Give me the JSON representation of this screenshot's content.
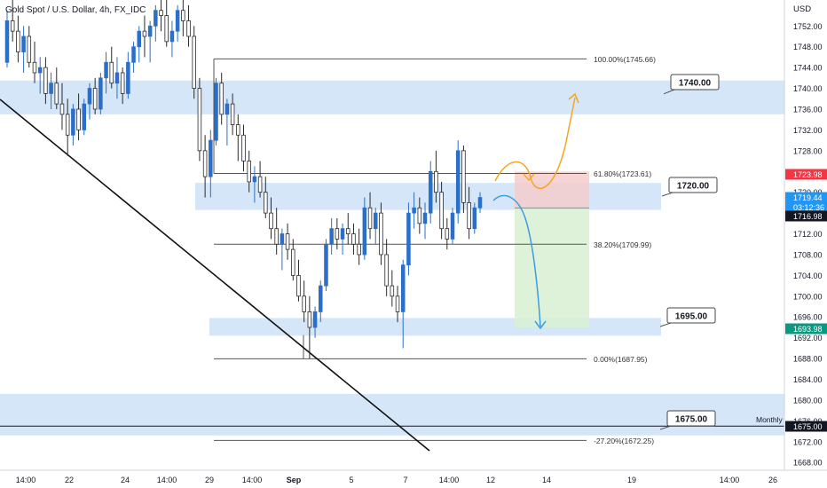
{
  "header": {
    "title": "Gold Spot / U.S. Dollar, 4h, FX_IDC",
    "currency": "USD"
  },
  "colors": {
    "bull": "#2a6fc9",
    "bear": "#2a2a2a",
    "zone": "#cfe3f7",
    "trendline": "#111111",
    "fib": "#555555",
    "sell_risk": "#f4cccc",
    "sell_reward": "#d8f0d4",
    "orange_path": "#f5a623",
    "blue_path": "#3d9be0",
    "tag_red": "#f23645",
    "tag_blue": "#2196f3",
    "tag_black": "#131722",
    "tag_green": "#089981"
  },
  "chart_data": {
    "type": "candlestick",
    "title": "Gold Spot / U.S. Dollar, 4h, FX_IDC",
    "y_axis": {
      "side": "right",
      "unit": "USD",
      "range": [
        1666.5,
        1757.0
      ],
      "ticks": [
        "1752.00",
        "1748.00",
        "1744.00",
        "1740.00",
        "1736.00",
        "1732.00",
        "1728.00",
        "1724.00",
        "1720.00",
        "1716.00",
        "1712.00",
        "1708.00",
        "1704.00",
        "1700.00",
        "1696.00",
        "1692.00",
        "1688.00",
        "1684.00",
        "1680.00",
        "1676.00",
        "1672.00",
        "1668.00"
      ]
    },
    "x_axis": {
      "ticks": [
        "14:00",
        "22",
        "24",
        "14:00",
        "29",
        "14:00",
        "Sep",
        "5",
        "7",
        "14:00",
        "12",
        "14",
        "19",
        "14:00",
        "26"
      ]
    },
    "grid": false,
    "fibonacci": [
      {
        "label": "100.00%(1745.66)",
        "level": 1745.66
      },
      {
        "label": "61.80%(1723.61)",
        "level": 1723.61
      },
      {
        "label": "38.20%(1709.99)",
        "level": 1709.99
      },
      {
        "label": "0.00%(1687.95)",
        "level": 1687.95
      },
      {
        "label": "-27.20%(1672.25)",
        "level": 1672.25
      }
    ],
    "zones": [
      {
        "label": "1740.00",
        "low": 1735.0,
        "high": 1741.5
      },
      {
        "label": "1720.00",
        "low": 1716.6,
        "high": 1721.8
      },
      {
        "label": "1695.00",
        "low": 1692.4,
        "high": 1695.8
      },
      {
        "label": "1675.00",
        "low": 1673.2,
        "high": 1681.2
      }
    ],
    "monthly_line": {
      "label": "Monthly",
      "level": 1675.0
    },
    "price_tags": [
      {
        "value": "1723.98",
        "role": "red"
      },
      {
        "value": "1719.44",
        "role": "blue"
      },
      {
        "value": "03:12:36",
        "role": "blue"
      },
      {
        "value": "1716.98",
        "role": "black"
      },
      {
        "value": "1693.98",
        "role": "green"
      },
      {
        "value": "1675.00",
        "role": "black"
      }
    ],
    "short_position": {
      "entry": 1716.98,
      "stop": 1723.98,
      "target": 1693.98
    },
    "candles": [
      [
        1745,
        1755,
        1744,
        1753
      ],
      [
        1753,
        1757,
        1749,
        1751
      ],
      [
        1751,
        1754,
        1745,
        1747
      ],
      [
        1747,
        1752,
        1743,
        1750
      ],
      [
        1750,
        1752,
        1744,
        1745
      ],
      [
        1745,
        1749,
        1741,
        1743
      ],
      [
        1743,
        1746,
        1739,
        1744
      ],
      [
        1744,
        1746,
        1737,
        1739
      ],
      [
        1739,
        1743,
        1736,
        1741
      ],
      [
        1741,
        1744,
        1736,
        1737
      ],
      [
        1737,
        1741,
        1732,
        1735
      ],
      [
        1735,
        1738,
        1727,
        1731
      ],
      [
        1731,
        1737,
        1729,
        1736
      ],
      [
        1736,
        1739,
        1730,
        1732
      ],
      [
        1732,
        1738,
        1731,
        1737
      ],
      [
        1737,
        1741,
        1734,
        1740
      ],
      [
        1740,
        1742,
        1735,
        1736
      ],
      [
        1736,
        1743,
        1735,
        1742
      ],
      [
        1742,
        1747,
        1739,
        1745
      ],
      [
        1745,
        1748,
        1740,
        1741
      ],
      [
        1741,
        1746,
        1738,
        1743
      ],
      [
        1743,
        1744,
        1737,
        1739
      ],
      [
        1739,
        1747,
        1738,
        1745
      ],
      [
        1745,
        1749,
        1743,
        1748
      ],
      [
        1748,
        1752,
        1745,
        1751
      ],
      [
        1751,
        1754,
        1746,
        1750
      ],
      [
        1750,
        1753,
        1745,
        1752
      ],
      [
        1752,
        1756,
        1749,
        1755
      ],
      [
        1755,
        1757,
        1751,
        1754
      ],
      [
        1754,
        1757,
        1748,
        1749
      ],
      [
        1749,
        1753,
        1746,
        1751
      ],
      [
        1751,
        1756,
        1749,
        1755
      ],
      [
        1755,
        1757,
        1750,
        1753
      ],
      [
        1753,
        1756,
        1748,
        1750
      ],
      [
        1750,
        1752,
        1738,
        1740
      ],
      [
        1740,
        1742,
        1726,
        1728
      ],
      [
        1728,
        1731,
        1719,
        1723
      ],
      [
        1723,
        1732,
        1719,
        1730
      ],
      [
        1730,
        1742,
        1729,
        1741
      ],
      [
        1741,
        1743,
        1733,
        1735
      ],
      [
        1735,
        1738,
        1729,
        1737
      ],
      [
        1737,
        1739,
        1731,
        1733
      ],
      [
        1733,
        1735,
        1726,
        1731
      ],
      [
        1731,
        1733,
        1724,
        1726
      ],
      [
        1726,
        1728,
        1720,
        1722
      ],
      [
        1722,
        1725,
        1718,
        1723
      ],
      [
        1723,
        1726,
        1719,
        1720
      ],
      [
        1720,
        1723,
        1715,
        1716
      ],
      [
        1716,
        1719,
        1711,
        1713
      ],
      [
        1713,
        1717,
        1708,
        1710
      ],
      [
        1710,
        1713,
        1705,
        1712
      ],
      [
        1712,
        1714,
        1707,
        1709
      ],
      [
        1709,
        1711,
        1703,
        1704
      ],
      [
        1704,
        1707,
        1699,
        1700
      ],
      [
        1700,
        1703,
        1695,
        1697
      ],
      [
        1697,
        1700,
        1688,
        1694
      ],
      [
        1694,
        1698,
        1692,
        1697
      ],
      [
        1697,
        1703,
        1695,
        1702
      ],
      [
        1702,
        1711,
        1701,
        1710
      ],
      [
        1710,
        1715,
        1708,
        1713
      ],
      [
        1713,
        1715,
        1709,
        1711
      ],
      [
        1711,
        1714,
        1708,
        1713
      ],
      [
        1713,
        1716,
        1710,
        1712
      ],
      [
        1712,
        1714,
        1708,
        1710
      ],
      [
        1710,
        1713,
        1706,
        1708
      ],
      [
        1708,
        1719,
        1707,
        1717
      ],
      [
        1717,
        1720,
        1711,
        1713
      ],
      [
        1713,
        1717,
        1710,
        1716
      ],
      [
        1716,
        1718,
        1706,
        1708
      ],
      [
        1708,
        1711,
        1700,
        1702
      ],
      [
        1702,
        1705,
        1698,
        1700
      ],
      [
        1700,
        1702,
        1695,
        1697
      ],
      [
        1697,
        1707,
        1690,
        1706
      ],
      [
        1706,
        1718,
        1704,
        1716
      ],
      [
        1716,
        1720,
        1713,
        1717
      ],
      [
        1717,
        1719,
        1712,
        1714
      ],
      [
        1714,
        1718,
        1711,
        1716
      ],
      [
        1716,
        1726,
        1714,
        1724
      ],
      [
        1724,
        1728,
        1718,
        1720
      ],
      [
        1720,
        1722,
        1711,
        1713
      ],
      [
        1713,
        1715,
        1709,
        1711
      ],
      [
        1711,
        1717,
        1710,
        1716
      ],
      [
        1716,
        1730,
        1714,
        1728
      ],
      [
        1728,
        1729,
        1716,
        1718
      ],
      [
        1718,
        1721,
        1711,
        1713
      ],
      [
        1713,
        1718,
        1712,
        1717
      ],
      [
        1717,
        1720,
        1716,
        1719
      ]
    ]
  },
  "annotations": {
    "zone_1740": "1740.00",
    "zone_1720": "1720.00",
    "zone_1695": "1695.00",
    "zone_1675": "1675.00"
  }
}
